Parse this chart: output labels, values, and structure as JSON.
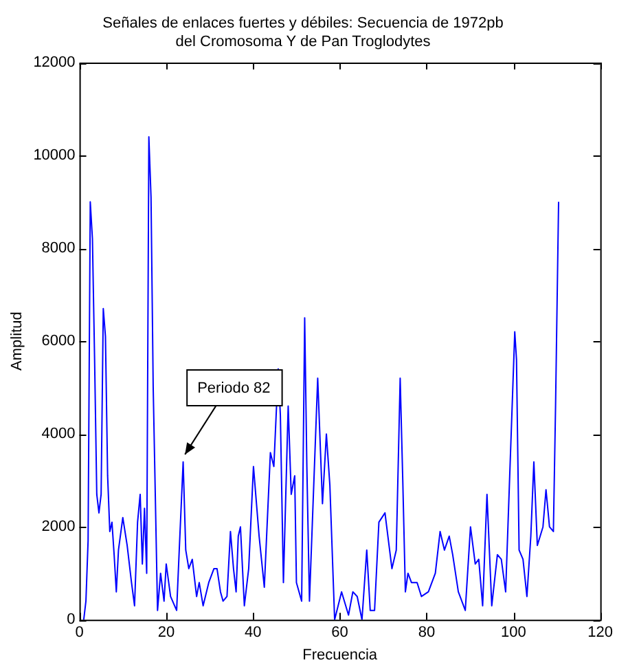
{
  "chart_data": {
    "type": "line",
    "title": "Señales de enlaces fuertes y débiles: Secuencia de 1972pb\ndel Cromosoma Y de Pan Troglodytes",
    "xlabel": "Frecuencia",
    "ylabel": "Amplitud",
    "x": [
      1,
      1.5,
      2,
      2.5,
      3,
      3.5,
      4,
      4.5,
      5,
      5.5,
      6,
      6.5,
      7,
      7.5,
      8,
      8.5,
      9,
      10,
      11,
      12,
      12.7,
      13.4,
      14,
      14.5,
      15,
      15.5,
      16,
      16.5,
      17,
      18,
      18.7,
      19.5,
      20,
      21,
      22.4,
      23,
      23.9,
      24.5,
      25.2,
      26,
      27,
      27.6,
      28.5,
      29.8,
      31,
      31.7,
      32.5,
      33.1,
      34,
      34.8,
      35.5,
      36.1,
      36.6,
      37.1,
      38,
      39,
      40.1,
      41.4,
      42.6,
      44,
      44.8,
      45.8,
      46.3,
      47,
      48.1,
      48.8,
      49.6,
      50,
      51.2,
      51.9,
      52.4,
      53,
      54.9,
      56,
      56.9,
      57.7,
      58.8,
      60.4,
      62,
      63,
      64,
      65.1,
      66.2,
      67,
      68,
      69,
      70.4,
      72,
      73,
      73.9,
      74.5,
      75.1,
      75.7,
      76.5,
      77.8,
      78.8,
      80.4,
      82,
      83.1,
      84.1,
      85.2,
      86,
      87.3,
      88.9,
      90.1,
      91.2,
      92,
      92.9,
      93.9,
      95,
      96.3,
      97.2,
      98.2,
      99.4,
      100.3,
      100.7,
      101.3,
      102.2,
      103.1,
      104,
      104.7,
      105.5,
      106.8,
      107.5,
      108.3,
      109.2,
      109.7,
      110.4
    ],
    "series": [
      {
        "color": "#0000ff",
        "values": [
          0,
          400,
          1700,
          9000,
          8200,
          5600,
          2700,
          2300,
          2700,
          6700,
          6100,
          3100,
          1900,
          2100,
          1400,
          600,
          1500,
          2200,
          1600,
          800,
          300,
          2100,
          2700,
          1200,
          2400,
          1000,
          10400,
          9100,
          5000,
          200,
          1000,
          400,
          1200,
          500,
          200,
          1500,
          3400,
          1500,
          1100,
          1300,
          500,
          800,
          300,
          800,
          1100,
          1100,
          600,
          400,
          500,
          1900,
          1100,
          600,
          1800,
          2000,
          300,
          1100,
          3300,
          1800,
          700,
          3600,
          3300,
          5400,
          4400,
          800,
          4600,
          2700,
          3100,
          800,
          400,
          6500,
          3300,
          400,
          5200,
          2500,
          4000,
          2900,
          0,
          600,
          100,
          600,
          500,
          0,
          1500,
          200,
          200,
          2100,
          2300,
          1100,
          1500,
          5200,
          3000,
          600,
          1000,
          800,
          800,
          500,
          600,
          1000,
          1900,
          1500,
          1800,
          1400,
          600,
          200,
          2000,
          1200,
          1300,
          300,
          2700,
          300,
          1400,
          1300,
          600,
          3800,
          6200,
          5600,
          1500,
          1300,
          500,
          1800,
          3400,
          1600,
          2000,
          2800,
          2000,
          1900,
          4600,
          9000
        ]
      }
    ],
    "xlim": [
      0,
      120
    ],
    "xticks": [
      0,
      20,
      40,
      60,
      80,
      100,
      120
    ],
    "ylim": [
      0,
      12000
    ],
    "yticks": [
      0,
      2000,
      4000,
      6000,
      8000,
      10000,
      12000
    ],
    "grid": false,
    "legend": false,
    "marker": "none",
    "line_style": "solid",
    "annotations": [
      {
        "text": "Periodo 82",
        "x": 24,
        "y": 3500
      }
    ]
  }
}
